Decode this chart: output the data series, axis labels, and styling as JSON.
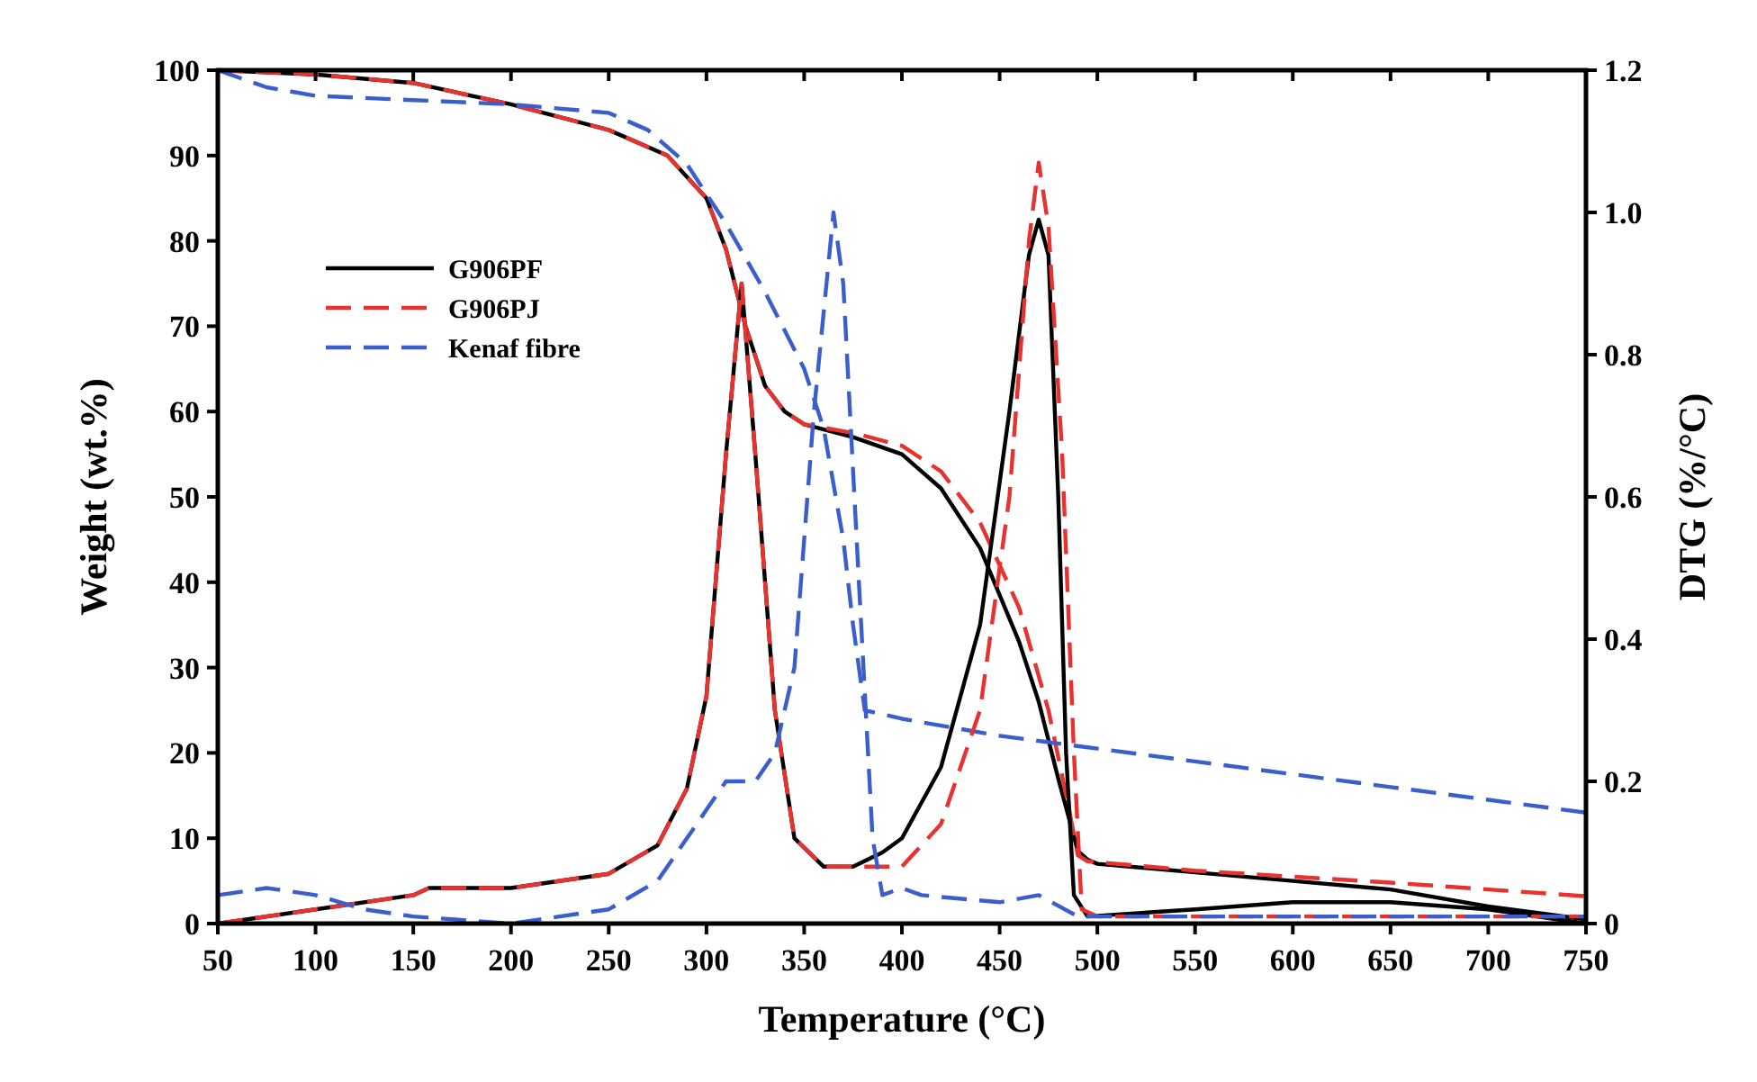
{
  "chart_data": {
    "type": "line",
    "xlabel": "Temperature (°C)",
    "ylabel": "Weight (wt.%)",
    "y2label": "DTG (%/°C)",
    "xlim": [
      50,
      750
    ],
    "xticks": [
      50,
      100,
      150,
      200,
      250,
      300,
      350,
      400,
      450,
      500,
      550,
      600,
      650,
      700,
      750
    ],
    "ylim": [
      0,
      100
    ],
    "yticks": [
      0,
      10,
      20,
      30,
      40,
      50,
      60,
      70,
      80,
      90,
      100
    ],
    "y2lim": [
      0,
      1.2
    ],
    "y2ticks": [
      {
        "value": 0,
        "label": "0"
      },
      {
        "value": 0.2,
        "label": "0.2"
      },
      {
        "value": 0.4,
        "label": "0.4"
      },
      {
        "value": 0.6,
        "label": "0.6"
      },
      {
        "value": 0.8,
        "label": "0.8"
      },
      {
        "value": 1,
        "label": "1.0"
      },
      {
        "value": 1.2,
        "label": "1.2"
      }
    ],
    "legend": "top left",
    "grid": false,
    "series": [
      {
        "name": "G906PF",
        "color": "#000000",
        "line_style": "solid",
        "x": [
          50,
          100,
          150,
          200,
          250,
          280,
          300,
          310,
          320,
          330,
          340,
          350,
          375,
          400,
          420,
          440,
          460,
          470,
          480,
          490,
          495,
          500,
          550,
          600,
          650,
          700,
          750
        ],
        "values": [
          100,
          99.5,
          98.5,
          96,
          93,
          90,
          85,
          79,
          70,
          63,
          60,
          58.5,
          57,
          55,
          51,
          44,
          33,
          26,
          17,
          8.5,
          7.5,
          7,
          6,
          5,
          4,
          2,
          0.5
        ]
      },
      {
        "name": "G906PJ",
        "color": "#e8322f",
        "line_style": "dashed",
        "x": [
          50,
          100,
          150,
          200,
          250,
          280,
          300,
          310,
          320,
          330,
          340,
          350,
          375,
          400,
          420,
          440,
          460,
          475,
          485,
          490,
          495,
          550,
          600,
          650,
          700,
          750
        ],
        "values": [
          100,
          99.5,
          98.5,
          96,
          93,
          90,
          85,
          79,
          70,
          63,
          60,
          58.5,
          57.5,
          56,
          53,
          47,
          37,
          25,
          14,
          8,
          7.3,
          6.2,
          5.5,
          4.8,
          4,
          3.2
        ]
      },
      {
        "name": "Kenaf fibre",
        "color": "#3a5fcd",
        "line_style": "dashed",
        "x": [
          50,
          75,
          100,
          150,
          200,
          250,
          270,
          290,
          310,
          330,
          350,
          360,
          370,
          375,
          381,
          400,
          450,
          500,
          550,
          600,
          650,
          700,
          750
        ],
        "values": [
          100,
          98,
          97,
          96.5,
          96,
          95,
          93,
          89,
          82,
          74,
          65,
          58,
          45,
          35,
          25,
          24,
          22,
          20.5,
          19,
          17.5,
          16,
          14.5,
          13
        ]
      },
      {
        "color": "#000000",
        "line_style": "solid",
        "axis": "y2",
        "x": [
          50,
          100,
          150,
          158,
          170,
          200,
          250,
          275,
          290,
          300,
          310,
          318,
          325,
          335,
          345,
          360,
          375,
          390,
          400,
          420,
          440,
          455,
          465,
          470,
          475,
          480,
          484,
          488,
          495,
          550,
          600,
          650,
          700,
          750
        ],
        "values": [
          0,
          0.02,
          0.04,
          0.05,
          0.05,
          0.05,
          0.07,
          0.11,
          0.19,
          0.32,
          0.66,
          0.9,
          0.66,
          0.3,
          0.12,
          0.08,
          0.08,
          0.1,
          0.12,
          0.22,
          0.42,
          0.72,
          0.94,
          0.99,
          0.94,
          0.6,
          0.24,
          0.04,
          0.01,
          0.02,
          0.03,
          0.03,
          0.02,
          0
        ]
      },
      {
        "color": "#e8322f",
        "line_style": "dashed",
        "axis": "y2",
        "x": [
          50,
          100,
          150,
          158,
          170,
          200,
          250,
          275,
          290,
          300,
          310,
          318,
          325,
          335,
          345,
          360,
          375,
          390,
          400,
          420,
          440,
          455,
          465,
          470,
          475,
          482,
          488,
          492,
          500,
          600,
          750
        ],
        "values": [
          0,
          0.02,
          0.04,
          0.05,
          0.05,
          0.05,
          0.07,
          0.11,
          0.19,
          0.32,
          0.66,
          0.9,
          0.66,
          0.3,
          0.12,
          0.08,
          0.08,
          0.08,
          0.08,
          0.14,
          0.3,
          0.6,
          0.96,
          1.07,
          0.98,
          0.66,
          0.24,
          0.02,
          0.01,
          0.01,
          0.01
        ]
      },
      {
        "color": "#3a5fcd",
        "line_style": "dashed",
        "axis": "y2",
        "x": [
          50,
          75,
          100,
          125,
          150,
          200,
          250,
          275,
          300,
          310,
          325,
          335,
          345,
          355,
          365,
          370,
          378,
          385,
          390,
          400,
          410,
          450,
          470,
          490,
          750
        ],
        "values": [
          0.04,
          0.05,
          0.04,
          0.02,
          0.01,
          0,
          0.02,
          0.06,
          0.16,
          0.2,
          0.2,
          0.24,
          0.36,
          0.72,
          1.0,
          0.9,
          0.48,
          0.12,
          0.04,
          0.05,
          0.04,
          0.03,
          0.04,
          0.01,
          0.01
        ]
      }
    ]
  }
}
